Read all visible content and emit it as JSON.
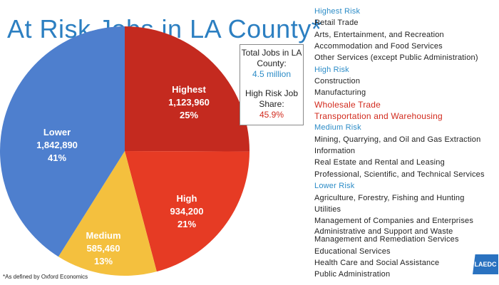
{
  "chart_data": {
    "type": "pie",
    "title": "At Risk Jobs in LA County*",
    "slices": [
      {
        "label": "Highest",
        "value_text": "1,123,960",
        "pct_text": "25%",
        "value": 1123960,
        "color": "#c42a1f"
      },
      {
        "label": "High",
        "value_text": "934,200",
        "pct_text": "21%",
        "value": 934200,
        "color": "#e63b24"
      },
      {
        "label": "Medium",
        "value_text": "585,460",
        "pct_text": "13%",
        "value": 585460,
        "color": "#f4c03e"
      },
      {
        "label": "Lower",
        "value_text": "1,842,890",
        "pct_text": "41%",
        "value": 1842890,
        "color": "#4e7fce"
      }
    ]
  },
  "stats": {
    "total_label": "Total Jobs in LA County:",
    "total_value": "4.5 million",
    "share_label": "High Risk Job Share:",
    "share_value": "45.9%"
  },
  "legend": [
    {
      "text": "Highest Risk",
      "kind": "heading"
    },
    {
      "text": "Retail Trade",
      "kind": "item"
    },
    {
      "text": "Arts, Entertainment, and Recreation",
      "kind": "item"
    },
    {
      "text": "Accommodation and Food Services",
      "kind": "item"
    },
    {
      "text": "Other Services (except Public Administration)",
      "kind": "item"
    },
    {
      "text": "High Risk",
      "kind": "heading"
    },
    {
      "text": "Construction",
      "kind": "item"
    },
    {
      "text": "Manufacturing",
      "kind": "item"
    },
    {
      "text": "Wholesale Trade",
      "kind": "emph"
    },
    {
      "text": "Transportation and Warehousing",
      "kind": "emph"
    },
    {
      "text": "Medium Risk",
      "kind": "heading"
    },
    {
      "text": "Mining, Quarrying, and Oil and Gas Extraction",
      "kind": "item"
    },
    {
      "text": "Information",
      "kind": "item"
    },
    {
      "text": "Real Estate and Rental and Leasing",
      "kind": "item"
    },
    {
      "text": "Professional, Scientific, and Technical Services",
      "kind": "item"
    },
    {
      "text": "Lower Risk",
      "kind": "heading"
    },
    {
      "text": "Agriculture, Forestry, Fishing and Hunting",
      "kind": "item"
    },
    {
      "text": "Utilities",
      "kind": "item"
    },
    {
      "text": "Management of Companies and Enterprises",
      "kind": "item"
    },
    {
      "text": "Administrative and Support and Waste Management and Remediation Services",
      "kind": "double"
    },
    {
      "text": "Educational Services",
      "kind": "item"
    },
    {
      "text": "Health Care and Social Assistance",
      "kind": "item"
    },
    {
      "text": "Public Administration",
      "kind": "item"
    }
  ],
  "footnote": "*As defined by Oxford Economics",
  "logo": "LAEDC"
}
